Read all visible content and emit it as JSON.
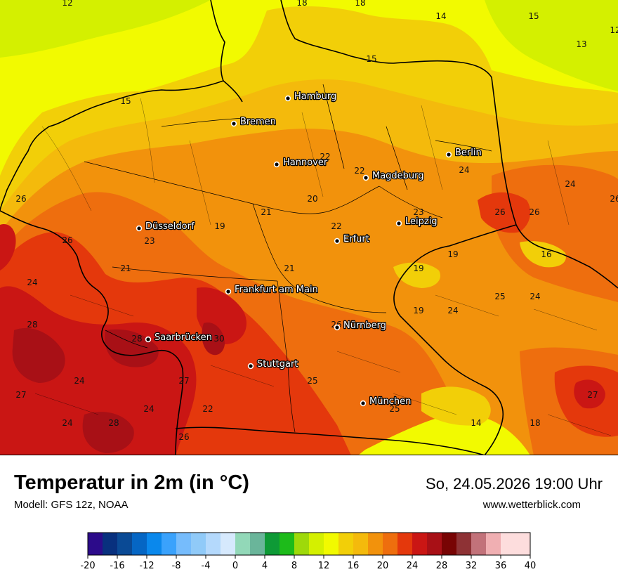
{
  "title": "Temperatur in 2m (in °C)",
  "model": "Modell: GFS 12z, NOAA",
  "datetime": "So, 24.05.2026 19:00 Uhr",
  "website": "www.wetterblick.com",
  "cities": [
    {
      "name": "Hamburg"
    },
    {
      "name": "Bremen"
    },
    {
      "name": "Hannover"
    },
    {
      "name": "Berlin"
    },
    {
      "name": "Magdeburg"
    },
    {
      "name": "Düsseldorf"
    },
    {
      "name": "Leipzig"
    },
    {
      "name": "Erfurt"
    },
    {
      "name": "Frankfurt am Main"
    },
    {
      "name": "Nürnberg"
    },
    {
      "name": "Saarbrücken"
    },
    {
      "name": "Stuttgart"
    },
    {
      "name": "München"
    }
  ],
  "isotherm_labels": [
    "12",
    "18",
    "18",
    "14",
    "15",
    "12",
    "13",
    "15",
    "15",
    "22",
    "22",
    "24",
    "24",
    "20",
    "26",
    "26",
    "21",
    "19",
    "22",
    "23",
    "23",
    "26",
    "26",
    "16",
    "19",
    "19",
    "21",
    "21",
    "24",
    "25",
    "24",
    "19",
    "24",
    "28",
    "26",
    "28",
    "30",
    "26",
    "25",
    "27",
    "24",
    "27",
    "24",
    "22",
    "25",
    "28",
    "24",
    "26",
    "14",
    "18",
    "27"
  ],
  "colorbar": {
    "colors": [
      "#2c0b8a",
      "#08307e",
      "#0a4a95",
      "#0566c4",
      "#0a88ec",
      "#3aa2fc",
      "#76bcfc",
      "#90caf8",
      "#b4d9fc",
      "#d6e9fd",
      "#92d8b8",
      "#6ab59a",
      "#0e9a36",
      "#1dbb1a",
      "#9ed90a",
      "#d4f000",
      "#f2fa00",
      "#f2cf08",
      "#f4ba0c",
      "#f2920c",
      "#ee6e0e",
      "#e4380c",
      "#ca1614",
      "#a81016",
      "#780404",
      "#8e3235",
      "#c2727a",
      "#f0afb2",
      "#fddddd"
    ],
    "tick_labels": [
      "-20",
      "-16",
      "-12",
      "-8",
      "-4",
      "0",
      "4",
      "8",
      "12",
      "16",
      "20",
      "24",
      "28",
      "32",
      "36",
      "40"
    ],
    "min": -20,
    "max": 40,
    "step": 2
  },
  "colors": {
    "green_yellow": "#d4f000",
    "yellow": "#f2fa00",
    "gold": "#f2cf08",
    "light_orange": "#f4ba0c",
    "orange": "#f2920c",
    "deep_orange": "#ee6e0e",
    "red_orange": "#e4380c",
    "red": "#ca1614",
    "dark_red": "#a81016"
  }
}
